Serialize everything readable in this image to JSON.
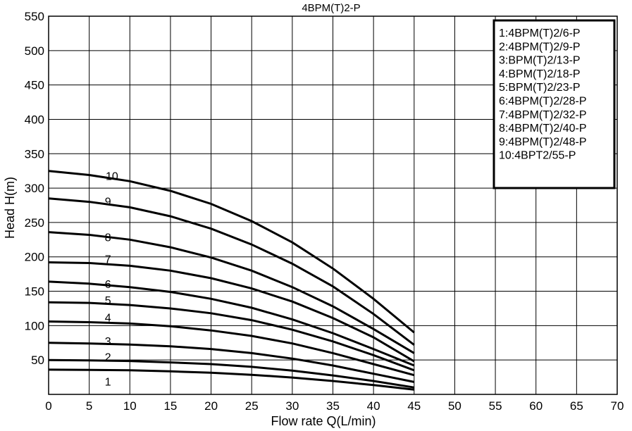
{
  "chart_data": {
    "type": "line",
    "title": "4BPM(T)2-P",
    "xlabel": "Flow rate Q(L/min)",
    "ylabel": "Head H(m)",
    "xlim": [
      0,
      70
    ],
    "ylim": [
      0,
      550
    ],
    "xticks": [
      0,
      5,
      10,
      15,
      20,
      25,
      30,
      35,
      40,
      45,
      50,
      55,
      60,
      65,
      70
    ],
    "yticks": [
      50,
      100,
      150,
      200,
      250,
      300,
      350,
      400,
      450,
      500,
      550
    ],
    "grid": true,
    "legend_position": "top-right",
    "legend": [
      "1:4BPM(T)2/6-P",
      "2:4BPM(T)2/9-P",
      "3:BPM(T)2/13-P",
      "4:BPM(T)2/18-P",
      "5:BPM(T)2/23-P",
      "6:4BPM(T)2/28-P",
      "7:4BPM(T)2/32-P",
      "8:4BPM(T)2/40-P",
      "9:4BPM(T)2/48-P",
      "10:4BPT2/55-P"
    ],
    "series": [
      {
        "label": "1",
        "label_x": 7.3,
        "label_y": 19,
        "x": [
          0,
          5,
          10,
          15,
          20,
          25,
          30,
          35,
          40,
          45
        ],
        "y": [
          36,
          35.5,
          35,
          33.5,
          31.5,
          28.5,
          24.5,
          19.5,
          13.5,
          7
        ]
      },
      {
        "label": "2",
        "label_x": 7.3,
        "label_y": 55,
        "x": [
          0,
          5,
          10,
          15,
          20,
          25,
          30,
          35,
          40,
          45
        ],
        "y": [
          50,
          49.5,
          48.5,
          46.5,
          44,
          40,
          34.5,
          27.5,
          19.5,
          10
        ]
      },
      {
        "label": "3",
        "label_x": 7.3,
        "label_y": 78,
        "x": [
          0,
          5,
          10,
          15,
          20,
          25,
          30,
          35,
          40,
          45
        ],
        "y": [
          75,
          74,
          72.5,
          70,
          66,
          60,
          52,
          42,
          30,
          18
        ]
      },
      {
        "label": "4",
        "label_x": 7.3,
        "label_y": 112,
        "x": [
          0,
          5,
          10,
          15,
          20,
          25,
          30,
          35,
          40,
          45
        ],
        "y": [
          106,
          105,
          103,
          99,
          93,
          85,
          74,
          60,
          44,
          28
        ]
      },
      {
        "label": "5",
        "label_x": 7.3,
        "label_y": 137,
        "x": [
          0,
          5,
          10,
          15,
          20,
          25,
          30,
          35,
          40,
          45
        ],
        "y": [
          134,
          133,
          130,
          125,
          118,
          108,
          94,
          77,
          57,
          35
        ]
      },
      {
        "label": "6",
        "label_x": 7.3,
        "label_y": 161,
        "x": [
          0,
          5,
          10,
          15,
          20,
          25,
          30,
          35,
          40,
          45
        ],
        "y": [
          164,
          161,
          156,
          149,
          139,
          126,
          109,
          89,
          66,
          42
        ]
      },
      {
        "label": "7",
        "label_x": 7.3,
        "label_y": 197,
        "x": [
          0,
          5,
          10,
          15,
          20,
          25,
          30,
          35,
          40,
          45
        ],
        "y": [
          192,
          191,
          187,
          180,
          169,
          154,
          135,
          111,
          83,
          48
        ]
      },
      {
        "label": "8",
        "label_x": 7.3,
        "label_y": 229,
        "x": [
          0,
          5,
          10,
          15,
          20,
          25,
          30,
          35,
          40,
          45
        ],
        "y": [
          236,
          232,
          225,
          214,
          199,
          180,
          156,
          128,
          95,
          60
        ]
      },
      {
        "label": "9",
        "label_x": 7.3,
        "label_y": 281,
        "x": [
          0,
          5,
          10,
          15,
          20,
          25,
          30,
          35,
          40,
          45
        ],
        "y": [
          285,
          280,
          272,
          259,
          241,
          218,
          190,
          157,
          117,
          72
        ]
      },
      {
        "label": "10",
        "label_x": 7.8,
        "label_y": 318,
        "x": [
          0,
          5,
          10,
          15,
          20,
          25,
          30,
          35,
          40,
          45
        ],
        "y": [
          325,
          319,
          310,
          296,
          277,
          252,
          221,
          183,
          139,
          90
        ]
      }
    ]
  }
}
